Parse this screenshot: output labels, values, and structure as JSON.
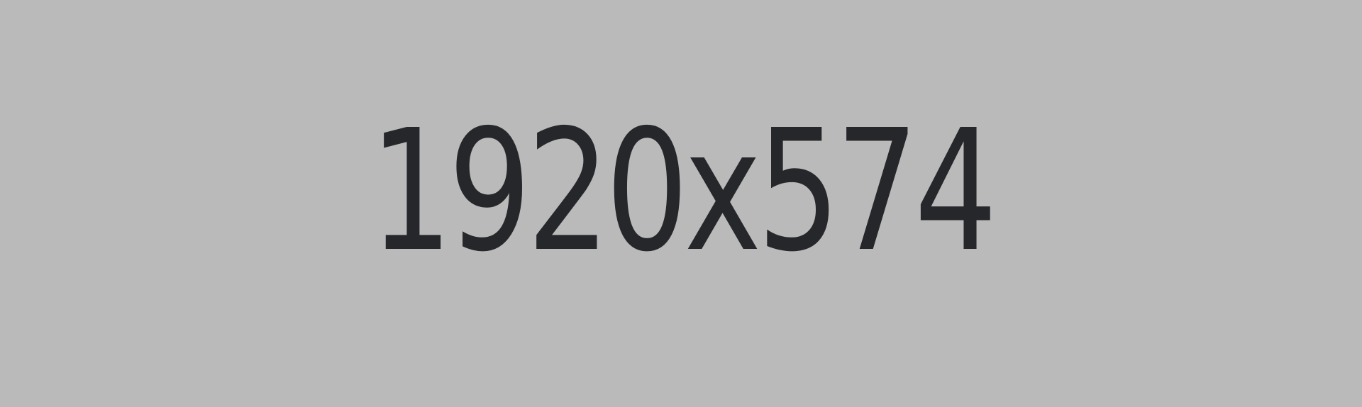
{
  "placeholder": {
    "text": "1920x574",
    "background_color": "#bababa",
    "text_color": "#25272a"
  }
}
